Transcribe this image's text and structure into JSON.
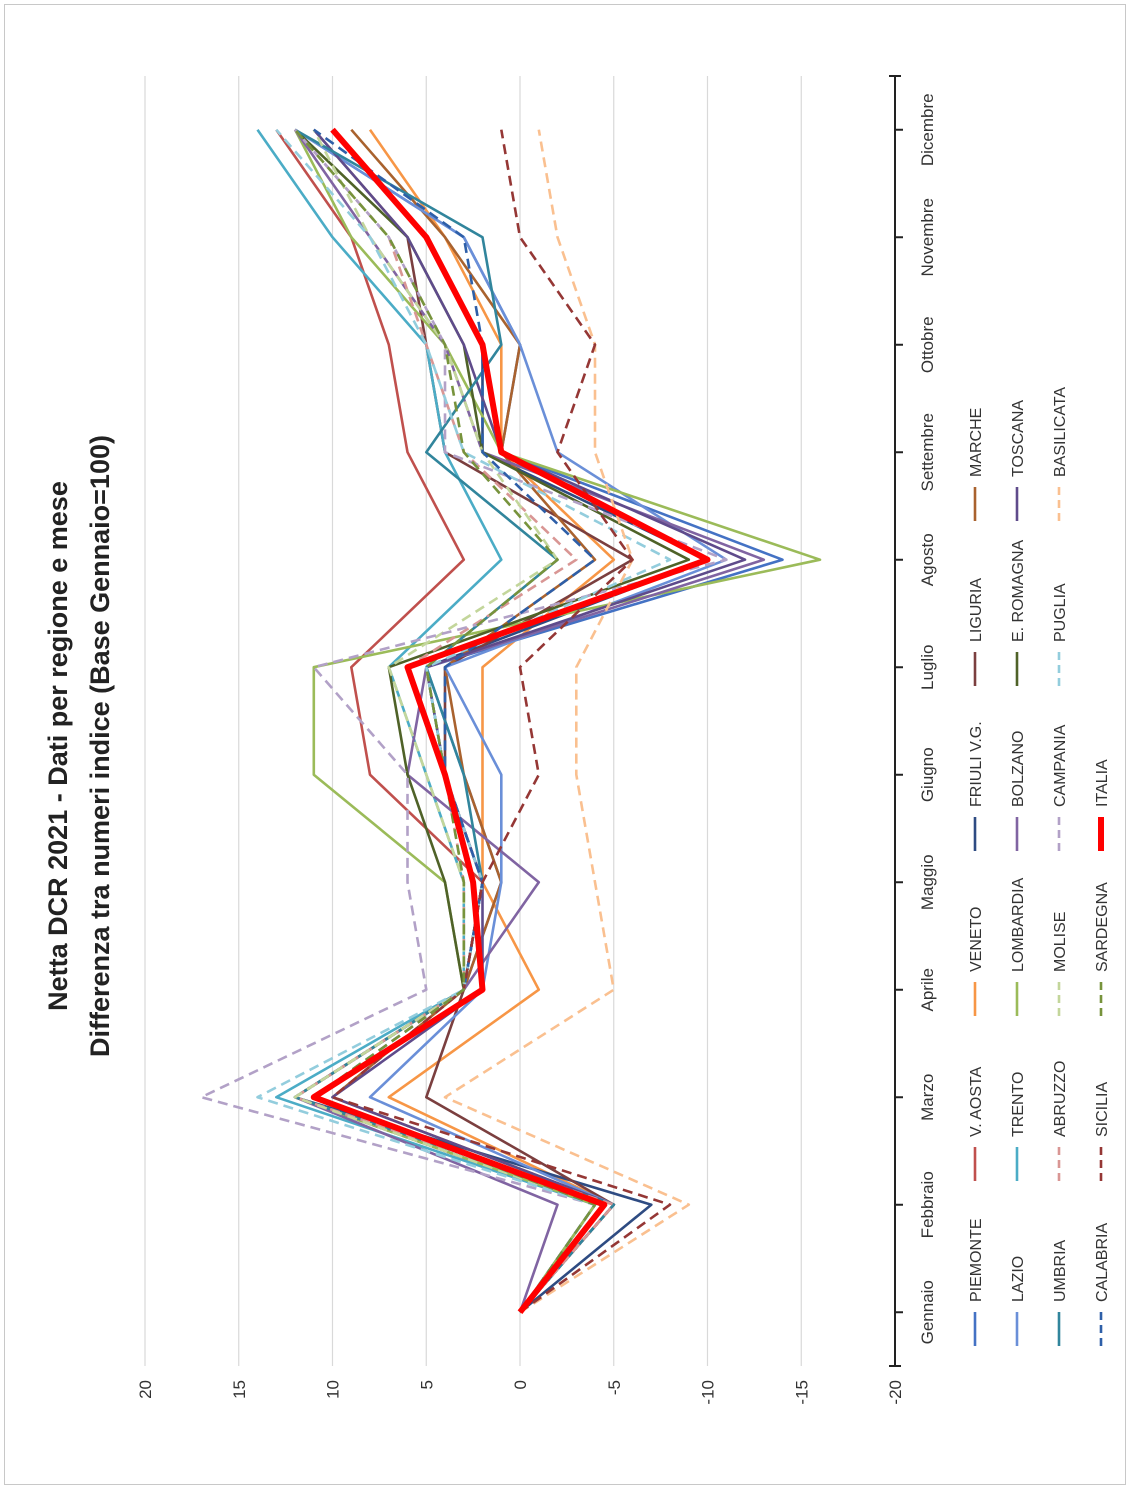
{
  "chart_data": {
    "type": "line",
    "title": "Netta DCR 2021 - Dati per regione e mese",
    "subtitle": "Differenza tra numeri indice (Base Gennaio=100)",
    "xlabel": "",
    "ylabel": "",
    "categories": [
      "Gennaio",
      "Febbraio",
      "Marzo",
      "Aprile",
      "Maggio",
      "Giugno",
      "Luglio",
      "Agosto",
      "Settembre",
      "Ottobre",
      "Novembre",
      "Dicembre"
    ],
    "y_ticks": [
      "20",
      "15",
      "10",
      "5",
      "0",
      "-5",
      "-10",
      "-15",
      "-20"
    ],
    "ylim": [
      -20,
      20
    ],
    "grid": true,
    "legend": "bottom",
    "series": [
      {
        "name": "PIEMONTE",
        "color": "#4472C4",
        "dash": "solid",
        "values": [
          0,
          -4,
          12,
          3,
          1,
          3,
          5,
          -14,
          1,
          0,
          3,
          12
        ]
      },
      {
        "name": "V. AOSTA",
        "color": "#C0504D",
        "dash": "solid",
        "values": [
          0,
          -4,
          12,
          3,
          2,
          8,
          9,
          3,
          6,
          7,
          9,
          13
        ]
      },
      {
        "name": "VENETO",
        "color": "#F79646",
        "dash": "solid",
        "values": [
          0,
          -5,
          7,
          -1,
          2,
          2,
          2,
          -5,
          1,
          1,
          4,
          8
        ]
      },
      {
        "name": "FRIULI V.G.",
        "color": "#2E4B82",
        "dash": "solid",
        "values": [
          0,
          -7,
          12,
          3,
          2,
          4,
          5,
          -10,
          2,
          2,
          5,
          10
        ]
      },
      {
        "name": "LIGURIA",
        "color": "#7B3F3F",
        "dash": "solid",
        "values": [
          0,
          -5,
          5,
          3,
          2,
          4,
          4,
          -6,
          4,
          5,
          6,
          11
        ]
      },
      {
        "name": "MARCHE",
        "color": "#A9622E",
        "dash": "solid",
        "values": [
          0,
          -5,
          10,
          3,
          1,
          3,
          4,
          -4,
          1,
          0,
          4,
          9
        ]
      },
      {
        "name": "LAZIO",
        "color": "#6A8FD8",
        "dash": "solid",
        "values": [
          0,
          -5,
          8,
          2,
          1,
          1,
          4,
          -11,
          -2,
          0,
          3,
          12
        ]
      },
      {
        "name": "TRENTO",
        "color": "#4BACC6",
        "dash": "solid",
        "values": [
          0,
          -4,
          13,
          3,
          3,
          5,
          7,
          1,
          4,
          5,
          10,
          14
        ]
      },
      {
        "name": "LOMBARDIA",
        "color": "#9BBB59",
        "dash": "solid",
        "values": [
          0,
          -4,
          12,
          3,
          4,
          11,
          11,
          -16,
          1,
          4,
          9,
          12
        ]
      },
      {
        "name": "BOLZANO",
        "color": "#8064A2",
        "dash": "solid",
        "values": [
          0,
          -2,
          12,
          3,
          -1,
          6,
          5,
          -13,
          2,
          4,
          8,
          12
        ]
      },
      {
        "name": "E. ROMAGNA",
        "color": "#4F6228",
        "dash": "solid",
        "values": [
          0,
          -5,
          12,
          3,
          4,
          6,
          7,
          -9,
          2,
          3,
          6,
          12
        ]
      },
      {
        "name": "TOSCANA",
        "color": "#5F4B8B",
        "dash": "solid",
        "values": [
          0,
          -5,
          10,
          2,
          2,
          4,
          5,
          -12,
          1,
          3,
          6,
          11
        ]
      },
      {
        "name": "UMBRIA",
        "color": "#31859C",
        "dash": "solid",
        "values": [
          0,
          -5,
          12,
          3,
          2,
          3,
          5,
          -2,
          5,
          1,
          2,
          12
        ]
      },
      {
        "name": "ABRUZZO",
        "color": "#D99694",
        "dash": "dash",
        "values": [
          0,
          -5,
          12,
          3,
          3,
          4,
          6,
          -3,
          3,
          5,
          7,
          12
        ]
      },
      {
        "name": "MOLISE",
        "color": "#C3D69B",
        "dash": "dash",
        "values": [
          0,
          -4,
          12,
          3,
          3,
          5,
          7,
          -2,
          2,
          4,
          8,
          11
        ]
      },
      {
        "name": "CAMPANIA",
        "color": "#B2A1C7",
        "dash": "dash",
        "values": [
          0,
          -4,
          17,
          5,
          6,
          6,
          11,
          -11,
          4,
          4,
          7,
          12
        ]
      },
      {
        "name": "PUGLIA",
        "color": "#93CDDD",
        "dash": "dash",
        "values": [
          0,
          -4,
          14,
          3,
          2,
          4,
          5,
          -8,
          3,
          5,
          8,
          13
        ]
      },
      {
        "name": "BASILICATA",
        "color": "#FAC090",
        "dash": "dash",
        "values": [
          0,
          -9,
          4,
          -5,
          -4,
          -3,
          -3,
          -6,
          -4,
          -4,
          -2,
          -1
        ]
      },
      {
        "name": "CALABRIA",
        "color": "#2E5FA8",
        "dash": "dash",
        "values": [
          0,
          -4,
          11,
          3,
          2,
          4,
          4,
          -4,
          2,
          2,
          3,
          11
        ]
      },
      {
        "name": "SICILIA",
        "color": "#953735",
        "dash": "dash",
        "values": [
          0,
          -8,
          10,
          3,
          2,
          -1,
          0,
          -6,
          -2,
          -4,
          0,
          1
        ]
      },
      {
        "name": "SARDEGNA",
        "color": "#77933C",
        "dash": "dash",
        "values": [
          0,
          -4,
          11,
          3,
          3,
          4,
          5,
          -2,
          3,
          4,
          7,
          12
        ]
      },
      {
        "name": "ITALIA",
        "color": "#FF0000",
        "dash": "thick",
        "values": [
          0,
          -4.5,
          11,
          2,
          2.5,
          4,
          6,
          -10,
          1,
          2,
          5,
          10
        ]
      }
    ]
  }
}
